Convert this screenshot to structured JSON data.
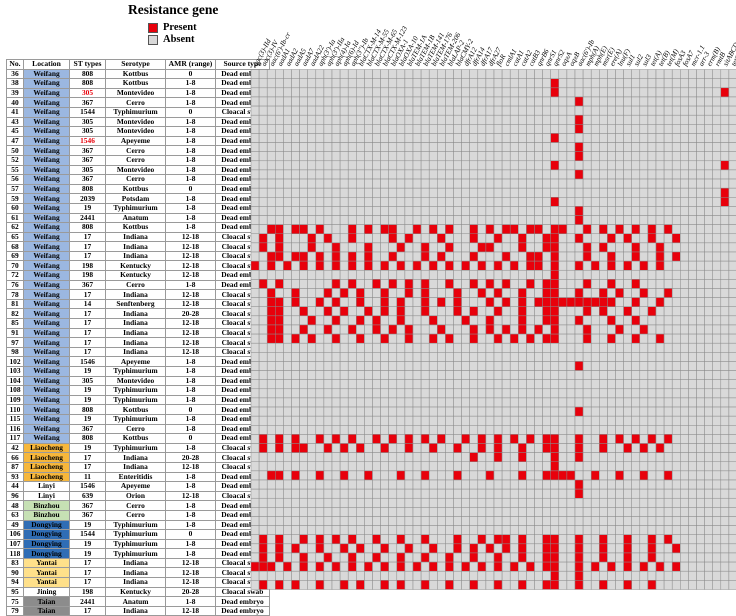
{
  "title": "Resistance gene",
  "legend": [
    {
      "label": "Present",
      "color": "#e8000b"
    },
    {
      "label": "Absent",
      "color": "#d9d9d9"
    }
  ],
  "columns": [
    "No.",
    "Location",
    "ST types",
    "Serotype",
    "AMR (range)",
    "Source type"
  ],
  "location_colors": {
    "Weifang": "#9bb7e0",
    "Liaocheng": "#f6b73c",
    "Linyi": "#ffffff",
    "Binzhou": "#c6e0b4",
    "Dongying": "#2f6db5",
    "Yantai": "#ffe08a",
    "Jining": "#ffffff",
    "Taian": "#8c8c8c"
  },
  "red_text_color": "#e8000b",
  "genes": [
    "aac(3)-IId",
    "aac(3)-IV",
    "aac(6')-Ib-cr",
    "aadA1",
    "aadA2",
    "aadA5",
    "aadA7",
    "aadA22",
    "aph(3')-Ia",
    "aph(3')-IIa",
    "aph(4)-Ia",
    "aph(6)-Id",
    "aph(3'')-Ib",
    "blaCTX-M-14",
    "blaCTX-M-55",
    "blaCTX-M-65",
    "blaCTX-M-123",
    "blaOXA-1",
    "blaOXA-10",
    "blaTEM-1A",
    "blaTEM-1B",
    "blaTEM-141",
    "blaTEM-176",
    "blaTEM-206",
    "blaLAP-2",
    "blaCMY-2",
    "dfrA12",
    "dfrA14",
    "dfrA17",
    "dfrA27",
    "floR",
    "cmlA1",
    "catA1",
    "catA2",
    "catB3",
    "qnrB6",
    "qnrS1",
    "qnrS2",
    "oqxA",
    "oqxB",
    "aac(6')-Ib",
    "mph(A)",
    "mph(E)",
    "msr(E)",
    "ere(A)",
    "lnu(F)",
    "sul1",
    "sul2",
    "sul3",
    "tet(A)",
    "tet(B)",
    "tet(M)",
    "fosA3",
    "fosA7",
    "mcr-1.1",
    "arr-3",
    "erm(B)",
    "rmtB",
    "sitABCD",
    "tet(C)"
  ],
  "rows": [
    {
      "no": "36",
      "location": "Weifang",
      "st": "808",
      "serotype": "Kottbus",
      "amr": "0",
      "source": "Dead embryo"
    },
    {
      "no": "38",
      "location": "Weifang",
      "st": "808",
      "serotype": "Kottbus",
      "amr": "1-8",
      "source": "Dead embryo"
    },
    {
      "no": "39",
      "location": "Weifang",
      "st": "305",
      "st_red": true,
      "serotype": "Montevideo",
      "amr": "1-8",
      "source": "Dead embryo"
    },
    {
      "no": "40",
      "location": "Weifang",
      "st": "367",
      "serotype": "Cerro",
      "amr": "1-8",
      "source": "Dead embryo"
    },
    {
      "no": "41",
      "location": "Weifang",
      "st": "1544",
      "serotype": "Typhimurium",
      "amr": "0",
      "source": "Cloacal swab"
    },
    {
      "no": "43",
      "location": "Weifang",
      "st": "305",
      "serotype": "Montevideo",
      "amr": "1-8",
      "source": "Dead embryo"
    },
    {
      "no": "45",
      "location": "Weifang",
      "st": "305",
      "serotype": "Montevideo",
      "amr": "1-8",
      "source": "Dead embryo"
    },
    {
      "no": "47",
      "location": "Weifang",
      "st": "1546",
      "st_red": true,
      "serotype": "Apeyeme",
      "amr": "1-8",
      "source": "Dead embryo"
    },
    {
      "no": "50",
      "location": "Weifang",
      "st": "367",
      "serotype": "Cerro",
      "amr": "1-8",
      "source": "Dead embryo"
    },
    {
      "no": "52",
      "location": "Weifang",
      "st": "367",
      "serotype": "Cerro",
      "amr": "1-8",
      "source": "Dead embryo"
    },
    {
      "no": "55",
      "location": "Weifang",
      "st": "305",
      "serotype": "Montevideo",
      "amr": "1-8",
      "source": "Dead embryo"
    },
    {
      "no": "56",
      "location": "Weifang",
      "st": "367",
      "serotype": "Cerro",
      "amr": "1-8",
      "source": "Dead embryo"
    },
    {
      "no": "57",
      "location": "Weifang",
      "st": "808",
      "serotype": "Kottbus",
      "amr": "0",
      "source": "Dead embryo"
    },
    {
      "no": "59",
      "location": "Weifang",
      "st": "2039",
      "serotype": "Potsdam",
      "amr": "1-8",
      "source": "Dead embryo"
    },
    {
      "no": "60",
      "location": "Weifang",
      "st": "19",
      "serotype": "Typhimurium",
      "amr": "1-8",
      "source": "Dead embryo"
    },
    {
      "no": "61",
      "location": "Weifang",
      "st": "2441",
      "serotype": "Anatum",
      "amr": "1-8",
      "source": "Dead embryo"
    },
    {
      "no": "62",
      "location": "Weifang",
      "st": "808",
      "serotype": "Kottbus",
      "amr": "1-8",
      "source": "Dead embryo"
    },
    {
      "no": "65",
      "location": "Weifang",
      "st": "17",
      "serotype": "Indiana",
      "amr": "12-18",
      "source": "Cloacal swab"
    },
    {
      "no": "68",
      "location": "Weifang",
      "st": "17",
      "serotype": "Indiana",
      "amr": "12-18",
      "source": "Cloacal swab"
    },
    {
      "no": "69",
      "location": "Weifang",
      "st": "17",
      "serotype": "Indiana",
      "amr": "12-18",
      "source": "Cloacal swab"
    },
    {
      "no": "70",
      "location": "Weifang",
      "st": "198",
      "serotype": "Kentucky",
      "amr": "12-18",
      "source": "Cloacal swab"
    },
    {
      "no": "72",
      "location": "Weifang",
      "st": "198",
      "serotype": "Kentucky",
      "amr": "12-18",
      "source": "Dead embryo"
    },
    {
      "no": "76",
      "location": "Weifang",
      "st": "367",
      "serotype": "Cerro",
      "amr": "1-8",
      "source": "Dead embryo"
    },
    {
      "no": "78",
      "location": "Weifang",
      "st": "17",
      "serotype": "Indiana",
      "amr": "12-18",
      "source": "Cloacal swab"
    },
    {
      "no": "81",
      "location": "Weifang",
      "st": "14",
      "serotype": "Senftenberg",
      "amr": "12-18",
      "source": "Cloacal swab"
    },
    {
      "no": "82",
      "location": "Weifang",
      "st": "17",
      "serotype": "Indiana",
      "amr": "20-28",
      "source": "Cloacal swab"
    },
    {
      "no": "85",
      "location": "Weifang",
      "st": "17",
      "serotype": "Indiana",
      "amr": "12-18",
      "source": "Cloacal swab"
    },
    {
      "no": "91",
      "location": "Weifang",
      "st": "17",
      "serotype": "Indiana",
      "amr": "12-18",
      "source": "Cloacal swab"
    },
    {
      "no": "97",
      "location": "Weifang",
      "st": "17",
      "serotype": "Indiana",
      "amr": "12-18",
      "source": "Cloacal swab"
    },
    {
      "no": "98",
      "location": "Weifang",
      "st": "17",
      "serotype": "Indiana",
      "amr": "12-18",
      "source": "Cloacal swab"
    },
    {
      "no": "102",
      "location": "Weifang",
      "st": "1546",
      "serotype": "Apeyeme",
      "amr": "1-8",
      "source": "Dead embryo"
    },
    {
      "no": "103",
      "location": "Weifang",
      "st": "19",
      "serotype": "Typhimurium",
      "amr": "1-8",
      "source": "Dead embryo"
    },
    {
      "no": "104",
      "location": "Weifang",
      "st": "305",
      "serotype": "Montevideo",
      "amr": "1-8",
      "source": "Dead embryo"
    },
    {
      "no": "108",
      "location": "Weifang",
      "st": "19",
      "serotype": "Typhimurium",
      "amr": "1-8",
      "source": "Dead embryo"
    },
    {
      "no": "109",
      "location": "Weifang",
      "st": "19",
      "serotype": "Typhimurium",
      "amr": "1-8",
      "source": "Dead embryo"
    },
    {
      "no": "110",
      "location": "Weifang",
      "st": "808",
      "serotype": "Kottbus",
      "amr": "0",
      "source": "Dead embryo"
    },
    {
      "no": "115",
      "location": "Weifang",
      "st": "19",
      "serotype": "Typhimurium",
      "amr": "1-8",
      "source": "Dead embryo"
    },
    {
      "no": "116",
      "location": "Weifang",
      "st": "367",
      "serotype": "Cerro",
      "amr": "1-8",
      "source": "Dead embryo"
    },
    {
      "no": "117",
      "location": "Weifang",
      "st": "808",
      "serotype": "Kottbus",
      "amr": "0",
      "source": "Dead embryo"
    },
    {
      "no": "42",
      "location": "Liaocheng",
      "st": "19",
      "serotype": "Typhimurium",
      "amr": "1-8",
      "source": "Cloacal swab"
    },
    {
      "no": "66",
      "location": "Liaocheng",
      "st": "17",
      "serotype": "Indiana",
      "amr": "20-28",
      "source": "Cloacal swab"
    },
    {
      "no": "87",
      "location": "Liaocheng",
      "st": "17",
      "serotype": "Indiana",
      "amr": "12-18",
      "source": "Cloacal swab"
    },
    {
      "no": "93",
      "location": "Liaocheng",
      "st": "11",
      "serotype": "Enteritidis",
      "amr": "1-8",
      "source": "Dead embryo"
    },
    {
      "no": "44",
      "location": "Linyi",
      "st": "1546",
      "serotype": "Apeyeme",
      "amr": "1-8",
      "source": "Dead embryo"
    },
    {
      "no": "96",
      "location": "Linyi",
      "st": "639",
      "serotype": "Orion",
      "amr": "12-18",
      "source": "Cloacal swab"
    },
    {
      "no": "48",
      "location": "Binzhou",
      "st": "367",
      "serotype": "Cerro",
      "amr": "1-8",
      "source": "Dead embryo"
    },
    {
      "no": "63",
      "location": "Binzhou",
      "st": "367",
      "serotype": "Cerro",
      "amr": "1-8",
      "source": "Dead embryo"
    },
    {
      "no": "49",
      "location": "Dongying",
      "st": "19",
      "serotype": "Typhimurium",
      "amr": "1-8",
      "source": "Dead embryo"
    },
    {
      "no": "106",
      "location": "Dongying",
      "st": "1544",
      "serotype": "Typhimurium",
      "amr": "0",
      "source": "Dead embryo"
    },
    {
      "no": "107",
      "location": "Dongying",
      "st": "19",
      "serotype": "Typhimurium",
      "amr": "1-8",
      "source": "Dead embryo"
    },
    {
      "no": "118",
      "location": "Dongying",
      "st": "19",
      "serotype": "Typhimurium",
      "amr": "1-8",
      "source": "Dead embryo"
    },
    {
      "no": "83",
      "location": "Yantai",
      "st": "17",
      "serotype": "Indiana",
      "amr": "12-18",
      "source": "Cloacal swab"
    },
    {
      "no": "90",
      "location": "Yantai",
      "st": "17",
      "serotype": "Indiana",
      "amr": "12-18",
      "source": "Cloacal swab"
    },
    {
      "no": "94",
      "location": "Yantai",
      "st": "17",
      "serotype": "Indiana",
      "amr": "12-18",
      "source": "Cloacal swab"
    },
    {
      "no": "95",
      "location": "Jining",
      "st": "198",
      "serotype": "Kentucky",
      "amr": "20-28",
      "source": "Cloacal swab"
    },
    {
      "no": "75",
      "location": "Taian",
      "st": "2441",
      "serotype": "Anatum",
      "amr": "1-8",
      "source": "Dead embryo"
    },
    {
      "no": "79",
      "location": "Taian",
      "st": "17",
      "serotype": "Indiana",
      "amr": "12-18",
      "source": "Dead embryo"
    }
  ],
  "presence": [
    [],
    [
      37
    ],
    [
      37,
      58
    ],
    [
      40
    ],
    [],
    [
      40
    ],
    [
      40
    ],
    [
      37
    ],
    [
      40
    ],
    [
      40
    ],
    [
      37,
      58
    ],
    [
      40
    ],
    [],
    [
      58,
      60
    ],
    [
      37,
      58
    ],
    [
      40
    ],
    [
      40
    ],
    [
      2,
      3,
      5,
      6,
      8,
      12,
      14,
      16,
      17,
      20,
      22,
      24,
      27,
      29,
      31,
      32,
      34,
      35,
      37,
      38,
      41,
      43,
      45,
      47,
      49,
      51
    ],
    [
      1,
      3,
      7,
      9,
      12,
      17,
      19,
      23,
      27,
      30,
      33,
      36,
      37,
      40,
      44,
      46,
      49,
      52
    ],
    [
      1,
      3,
      7,
      10,
      14,
      18,
      21,
      24,
      28,
      29,
      33,
      36,
      37,
      41,
      43,
      47,
      50
    ],
    [
      2,
      3,
      5,
      6,
      8,
      10,
      12,
      14,
      17,
      21,
      23,
      27,
      31,
      34,
      35,
      37,
      41,
      44,
      47,
      50,
      52
    ],
    [
      0,
      2,
      4,
      6,
      8,
      10,
      12,
      14,
      16,
      18,
      20,
      22,
      24,
      26,
      28,
      30,
      32,
      34,
      35,
      37,
      40,
      42,
      44,
      46,
      48,
      50
    ],
    [
      37
    ],
    [
      1,
      3,
      10,
      12,
      15,
      17,
      19,
      21,
      24,
      27,
      29,
      31,
      34,
      36,
      37,
      41,
      44,
      47
    ],
    [
      2,
      5,
      9,
      11,
      13,
      16,
      19,
      21,
      25,
      28,
      30,
      33,
      36,
      37,
      40,
      43,
      45,
      48,
      51
    ],
    [
      2,
      3,
      5,
      8,
      10,
      13,
      16,
      18,
      21,
      23,
      25,
      29,
      31,
      33,
      35,
      36,
      37,
      38,
      39,
      40,
      41,
      42,
      43,
      44,
      47,
      50
    ],
    [
      2,
      3,
      6,
      9,
      11,
      14,
      16,
      18,
      21,
      25,
      27,
      30,
      33,
      36,
      37,
      41,
      43,
      46,
      49
    ],
    [
      2,
      3,
      7,
      10,
      13,
      15,
      18,
      22,
      26,
      29,
      33,
      36,
      37,
      40,
      44,
      47
    ],
    [
      2,
      3,
      6,
      9,
      12,
      15,
      17,
      19,
      23,
      27,
      29,
      31,
      33,
      35,
      37,
      41,
      45,
      48
    ],
    [
      2,
      3,
      5,
      7,
      10,
      13,
      16,
      19,
      22,
      24,
      27,
      30,
      32,
      34,
      36,
      37,
      41,
      44,
      47,
      50
    ],
    [],
    [],
    [
      40
    ],
    [],
    [],
    [],
    [],
    [
      40
    ],
    [],
    [],
    [
      1,
      3,
      5,
      8,
      10,
      12,
      15,
      17,
      19,
      21,
      23,
      26,
      28,
      30,
      32,
      34,
      36,
      37,
      40,
      43,
      45,
      47,
      49,
      51
    ],
    [
      1,
      3,
      5,
      6,
      9,
      11,
      13,
      16,
      19,
      22,
      25,
      28,
      30,
      33,
      36,
      37,
      40,
      43,
      46,
      48,
      50
    ],
    [
      27,
      30,
      33,
      37,
      40
    ],
    [
      37
    ],
    [
      2,
      3,
      5,
      8,
      11,
      14,
      18,
      21,
      25,
      29,
      33,
      36,
      37,
      38,
      39,
      42,
      45,
      48,
      51
    ],
    [
      40
    ],
    [
      40
    ],
    [],
    [],
    [],
    [],
    [
      1,
      3,
      6,
      8,
      10,
      12,
      15,
      18,
      21,
      25,
      28,
      30,
      31,
      33,
      36,
      37,
      40,
      43,
      46,
      49,
      51
    ],
    [
      1,
      3,
      5,
      8,
      11,
      13,
      16,
      19,
      22,
      25,
      27,
      29,
      31,
      33,
      36,
      37,
      40,
      43,
      46,
      49,
      52
    ],
    [
      1,
      3,
      6,
      9,
      12,
      15,
      18,
      21,
      24,
      27,
      30,
      33,
      36,
      37,
      40,
      43,
      46,
      49
    ],
    [
      0,
      1,
      2,
      4,
      6,
      8,
      10,
      12,
      14,
      16,
      18,
      20,
      22,
      24,
      26,
      28,
      30,
      32,
      34,
      36,
      37,
      40,
      42,
      44,
      46,
      48,
      50,
      52
    ],
    [
      37,
      40
    ],
    [
      1,
      3,
      5,
      8,
      11,
      13,
      16,
      18,
      21,
      24,
      27,
      30,
      33,
      36,
      37,
      40,
      43,
      46,
      49
    ]
  ]
}
